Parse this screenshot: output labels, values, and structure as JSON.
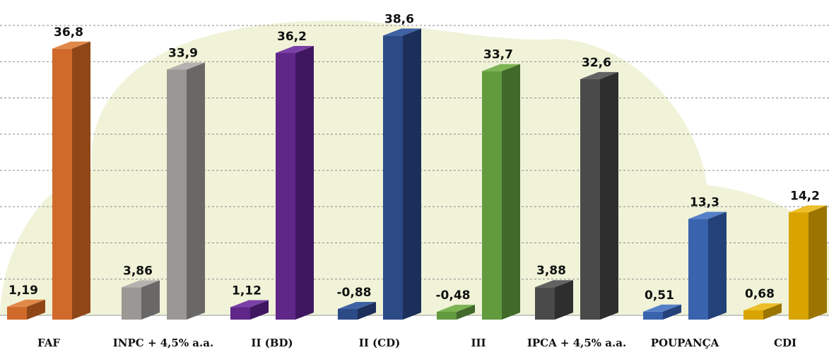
{
  "chart_data": {
    "type": "bar",
    "title": "",
    "xlabel": "",
    "ylabel": "",
    "ylim": [
      0,
      40
    ],
    "grid": true,
    "legend": "none",
    "categories": [
      "FAF",
      "INPC + 4,5% a.a.",
      "II (BD)",
      "II (CD)",
      "III",
      "IPCA + 4,5% a.a.",
      "POUPANÇA",
      "CDI"
    ],
    "series": [
      {
        "values": [
          1.19,
          3.86,
          1.12,
          -0.88,
          -0.48,
          3.88,
          0.51,
          0.68
        ],
        "labels": [
          "1,19",
          "3,86",
          "1,12",
          "-0,88",
          "-0,48",
          "3,88",
          "0,51",
          "0,68"
        ]
      },
      {
        "values": [
          36.8,
          33.9,
          36.2,
          38.6,
          33.7,
          32.6,
          13.3,
          14.2
        ],
        "labels": [
          "36,8",
          "33,9",
          "36,2",
          "38,6",
          "33,7",
          "32,6",
          "13,3",
          "14,2"
        ]
      }
    ],
    "colors": [
      {
        "front": "#d06a2a",
        "side": "#8f4718",
        "top": "#e0894a"
      },
      {
        "front": "#9a9795",
        "side": "#6a6866",
        "top": "#b4b1ae"
      },
      {
        "front": "#5e2788",
        "side": "#3f1660",
        "top": "#7a40a6"
      },
      {
        "front": "#2b4a86",
        "side": "#1b2f5a",
        "top": "#3f62a4"
      },
      {
        "front": "#629a3e",
        "side": "#40692a",
        "top": "#7cb454"
      },
      {
        "front": "#4a4a4a",
        "side": "#2e2e2e",
        "top": "#626262"
      },
      {
        "front": "#3a63ad",
        "side": "#24427a",
        "top": "#5580c8"
      },
      {
        "front": "#d9a400",
        "side": "#9c7500",
        "top": "#ecbe2a"
      }
    ]
  }
}
